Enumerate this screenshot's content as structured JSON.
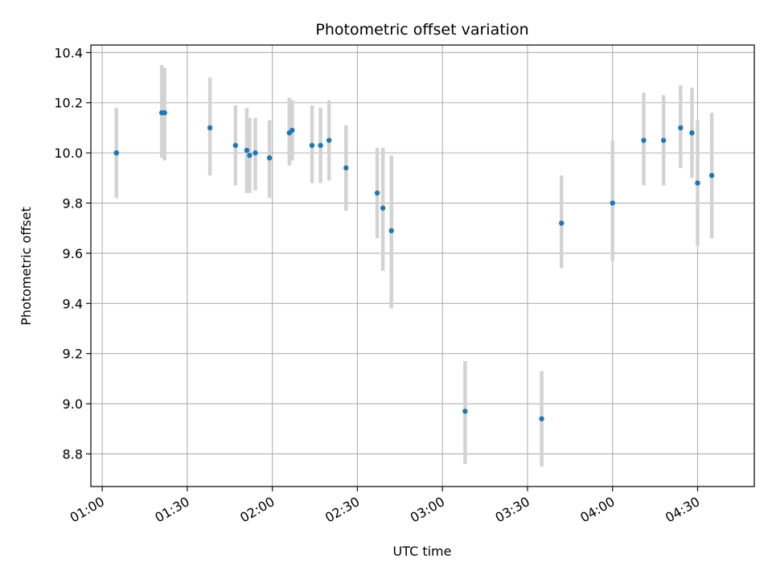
{
  "chart_data": {
    "type": "scatter",
    "title": "Photometric offset variation",
    "xlabel": "UTC time",
    "ylabel": "Photometric offset",
    "x_unit": "UTC time (HH:MM)",
    "xlim": [
      "00:56",
      "04:50"
    ],
    "ylim": [
      8.67,
      10.43
    ],
    "x_ticks": [
      "01:00",
      "01:30",
      "02:00",
      "02:30",
      "03:00",
      "03:30",
      "04:00",
      "04:30"
    ],
    "y_ticks": [
      "8.8",
      "9.0",
      "9.2",
      "9.4",
      "9.6",
      "9.8",
      "10.0",
      "10.2",
      "10.4"
    ],
    "grid": true,
    "colors": {
      "point": "#1f77b4",
      "errorbar": "#d3d3d3",
      "grid": "#b0b0b0"
    },
    "points": [
      {
        "t": "01:05",
        "y": 10.0,
        "err_low": 9.85,
        "err_high": 10.16
      },
      {
        "t": "01:05",
        "y": 10.0,
        "err_low": 9.82,
        "err_high": 10.18
      },
      {
        "t": "01:21",
        "y": 10.16,
        "err_low": 9.98,
        "err_high": 10.35
      },
      {
        "t": "01:22",
        "y": 10.16,
        "err_low": 9.97,
        "err_high": 10.34
      },
      {
        "t": "01:38",
        "y": 10.1,
        "err_low": 9.91,
        "err_high": 10.3
      },
      {
        "t": "01:47",
        "y": 10.03,
        "err_low": 9.87,
        "err_high": 10.19
      },
      {
        "t": "01:51",
        "y": 10.01,
        "err_low": 9.84,
        "err_high": 10.18
      },
      {
        "t": "01:52",
        "y": 9.99,
        "err_low": 9.84,
        "err_high": 10.14
      },
      {
        "t": "01:54",
        "y": 10.0,
        "err_low": 9.85,
        "err_high": 10.14
      },
      {
        "t": "01:59",
        "y": 9.98,
        "err_low": 9.82,
        "err_high": 10.13
      },
      {
        "t": "02:06",
        "y": 10.08,
        "err_low": 9.95,
        "err_high": 10.22
      },
      {
        "t": "02:07",
        "y": 10.09,
        "err_low": 9.97,
        "err_high": 10.21
      },
      {
        "t": "02:14",
        "y": 10.03,
        "err_low": 9.88,
        "err_high": 10.19
      },
      {
        "t": "02:17",
        "y": 10.03,
        "err_low": 9.88,
        "err_high": 10.18
      },
      {
        "t": "02:20",
        "y": 10.05,
        "err_low": 9.89,
        "err_high": 10.21
      },
      {
        "t": "02:26",
        "y": 9.94,
        "err_low": 9.77,
        "err_high": 10.11
      },
      {
        "t": "02:37",
        "y": 9.84,
        "err_low": 9.66,
        "err_high": 10.02
      },
      {
        "t": "02:39",
        "y": 9.78,
        "err_low": 9.53,
        "err_high": 10.02
      },
      {
        "t": "02:42",
        "y": 9.69,
        "err_low": 9.38,
        "err_high": 9.99
      },
      {
        "t": "03:08",
        "y": 8.97,
        "err_low": 8.76,
        "err_high": 9.17
      },
      {
        "t": "03:35",
        "y": 8.94,
        "err_low": 8.75,
        "err_high": 9.13
      },
      {
        "t": "03:42",
        "y": 9.72,
        "err_low": 9.54,
        "err_high": 9.91
      },
      {
        "t": "04:00",
        "y": 9.8,
        "err_low": 9.57,
        "err_high": 10.05
      },
      {
        "t": "04:11",
        "y": 10.05,
        "err_low": 9.87,
        "err_high": 10.24
      },
      {
        "t": "04:18",
        "y": 10.05,
        "err_low": 9.87,
        "err_high": 10.23
      },
      {
        "t": "04:24",
        "y": 10.1,
        "err_low": 9.94,
        "err_high": 10.27
      },
      {
        "t": "04:28",
        "y": 10.08,
        "err_low": 9.9,
        "err_high": 10.26
      },
      {
        "t": "04:30",
        "y": 9.88,
        "err_low": 9.63,
        "err_high": 10.13
      },
      {
        "t": "04:35",
        "y": 9.91,
        "err_low": 9.66,
        "err_high": 10.16
      }
    ]
  }
}
